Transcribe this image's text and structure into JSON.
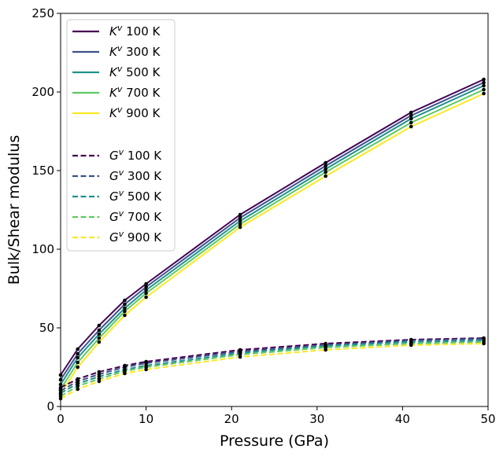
{
  "chart_data": {
    "type": "line",
    "xlabel": "Pressure (GPa)",
    "ylabel": "Bulk/Shear modulus",
    "xlim": [
      0,
      50
    ],
    "ylim": [
      0,
      250
    ],
    "xticks": [
      0,
      10,
      20,
      30,
      40,
      50
    ],
    "yticks": [
      0,
      50,
      100,
      150,
      200,
      250
    ],
    "legend_position": "top-left",
    "x": [
      0,
      2,
      4.5,
      7.5,
      10,
      21,
      31,
      41,
      49.5
    ],
    "series": [
      {
        "name": "K",
        "sup": "v",
        "temp": "100 K",
        "label": "K^v 100 K",
        "style": "solid",
        "color": "#440154",
        "values": [
          20,
          36.5,
          51.5,
          67.5,
          78,
          122,
          155,
          187,
          208
        ]
      },
      {
        "name": "K",
        "sup": "v",
        "temp": "300 K",
        "label": "K^v 300 K",
        "style": "solid",
        "color": "#3b528b",
        "values": [
          17,
          33.5,
          48.5,
          65,
          76,
          120,
          153,
          185,
          206
        ]
      },
      {
        "name": "K",
        "sup": "v",
        "temp": "500 K",
        "label": "K^v 500 K",
        "style": "solid",
        "color": "#21918c",
        "values": [
          14,
          31,
          46,
          62.5,
          74,
          118,
          151,
          183,
          204
        ]
      },
      {
        "name": "K",
        "sup": "v",
        "temp": "700 K",
        "label": "K^v 700 K",
        "style": "solid",
        "color": "#5ec962",
        "values": [
          11,
          28,
          43.5,
          60.5,
          72,
          116,
          149,
          180.5,
          201.5
        ]
      },
      {
        "name": "K",
        "sup": "v",
        "temp": "900 K",
        "label": "K^v 900 K",
        "style": "solid",
        "color": "#fde725",
        "values": [
          8,
          25,
          41,
          58,
          69.5,
          114,
          146.5,
          178,
          199
        ]
      },
      {
        "name": "G",
        "sup": "v",
        "temp": "100 K",
        "label": "G^v 100 K",
        "style": "dashed",
        "color": "#440154",
        "values": [
          12,
          17.5,
          22,
          26,
          28.5,
          36,
          40,
          42.5,
          43.5
        ]
      },
      {
        "name": "G",
        "sup": "v",
        "temp": "300 K",
        "label": "G^v 300 K",
        "style": "dashed",
        "color": "#3b528b",
        "values": [
          10,
          16,
          20.5,
          25,
          27.5,
          35,
          39,
          42,
          43
        ]
      },
      {
        "name": "G",
        "sup": "v",
        "temp": "500 K",
        "label": "G^v 500 K",
        "style": "dashed",
        "color": "#21918c",
        "values": [
          8.5,
          14.5,
          19,
          23.5,
          26,
          34,
          38.5,
          41,
          42
        ]
      },
      {
        "name": "G",
        "sup": "v",
        "temp": "700 K",
        "label": "G^v 700 K",
        "style": "dashed",
        "color": "#5ec962",
        "values": [
          6.5,
          13,
          17.5,
          22.5,
          25,
          33,
          37.5,
          40,
          41
        ]
      },
      {
        "name": "G",
        "sup": "v",
        "temp": "900 K",
        "label": "G^v 900 K",
        "style": "dashed",
        "color": "#fde725",
        "values": [
          5,
          11,
          16,
          21,
          23.5,
          31.5,
          36,
          39,
          40
        ]
      }
    ]
  }
}
